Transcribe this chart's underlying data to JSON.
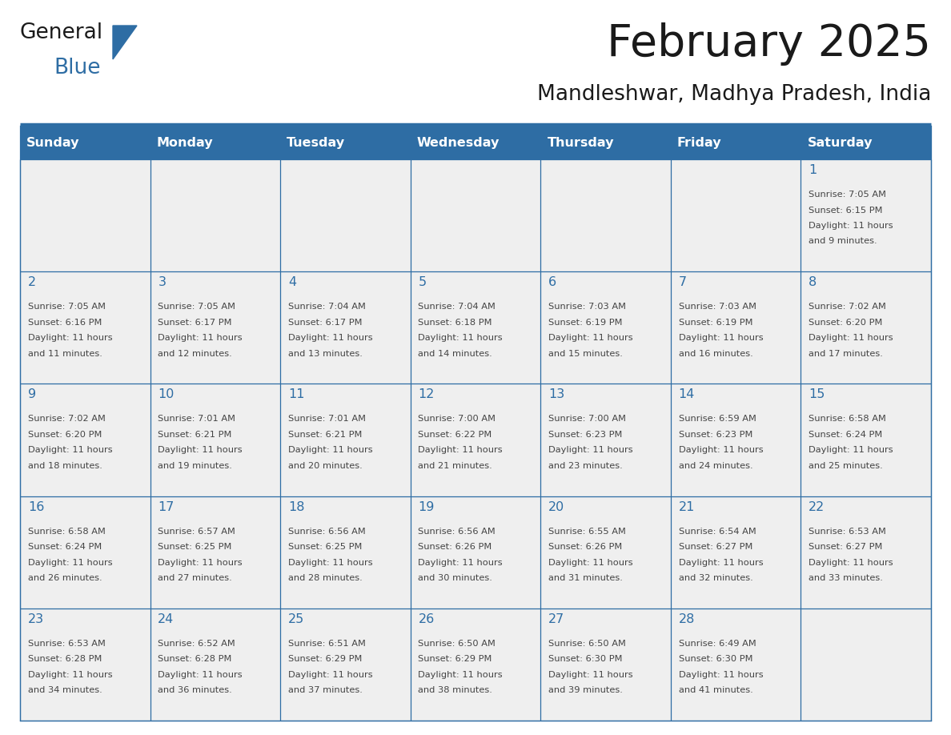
{
  "title": "February 2025",
  "subtitle": "Mandleshwar, Madhya Pradesh, India",
  "header_bg": "#2E6DA4",
  "header_text_color": "#FFFFFF",
  "border_color": "#2E6DA4",
  "day_number_color": "#2E6DA4",
  "text_color": "#444444",
  "cell_bg": "#EFEFEF",
  "days_of_week": [
    "Sunday",
    "Monday",
    "Tuesday",
    "Wednesday",
    "Thursday",
    "Friday",
    "Saturday"
  ],
  "calendar_data": [
    [
      null,
      null,
      null,
      null,
      null,
      null,
      {
        "day": 1,
        "sunrise": "7:05 AM",
        "sunset": "6:15 PM",
        "daylight_h": "11 hours",
        "daylight_m": "and 9 minutes."
      }
    ],
    [
      {
        "day": 2,
        "sunrise": "7:05 AM",
        "sunset": "6:16 PM",
        "daylight_h": "11 hours",
        "daylight_m": "and 11 minutes."
      },
      {
        "day": 3,
        "sunrise": "7:05 AM",
        "sunset": "6:17 PM",
        "daylight_h": "11 hours",
        "daylight_m": "and 12 minutes."
      },
      {
        "day": 4,
        "sunrise": "7:04 AM",
        "sunset": "6:17 PM",
        "daylight_h": "11 hours",
        "daylight_m": "and 13 minutes."
      },
      {
        "day": 5,
        "sunrise": "7:04 AM",
        "sunset": "6:18 PM",
        "daylight_h": "11 hours",
        "daylight_m": "and 14 minutes."
      },
      {
        "day": 6,
        "sunrise": "7:03 AM",
        "sunset": "6:19 PM",
        "daylight_h": "11 hours",
        "daylight_m": "and 15 minutes."
      },
      {
        "day": 7,
        "sunrise": "7:03 AM",
        "sunset": "6:19 PM",
        "daylight_h": "11 hours",
        "daylight_m": "and 16 minutes."
      },
      {
        "day": 8,
        "sunrise": "7:02 AM",
        "sunset": "6:20 PM",
        "daylight_h": "11 hours",
        "daylight_m": "and 17 minutes."
      }
    ],
    [
      {
        "day": 9,
        "sunrise": "7:02 AM",
        "sunset": "6:20 PM",
        "daylight_h": "11 hours",
        "daylight_m": "and 18 minutes."
      },
      {
        "day": 10,
        "sunrise": "7:01 AM",
        "sunset": "6:21 PM",
        "daylight_h": "11 hours",
        "daylight_m": "and 19 minutes."
      },
      {
        "day": 11,
        "sunrise": "7:01 AM",
        "sunset": "6:21 PM",
        "daylight_h": "11 hours",
        "daylight_m": "and 20 minutes."
      },
      {
        "day": 12,
        "sunrise": "7:00 AM",
        "sunset": "6:22 PM",
        "daylight_h": "11 hours",
        "daylight_m": "and 21 minutes."
      },
      {
        "day": 13,
        "sunrise": "7:00 AM",
        "sunset": "6:23 PM",
        "daylight_h": "11 hours",
        "daylight_m": "and 23 minutes."
      },
      {
        "day": 14,
        "sunrise": "6:59 AM",
        "sunset": "6:23 PM",
        "daylight_h": "11 hours",
        "daylight_m": "and 24 minutes."
      },
      {
        "day": 15,
        "sunrise": "6:58 AM",
        "sunset": "6:24 PM",
        "daylight_h": "11 hours",
        "daylight_m": "and 25 minutes."
      }
    ],
    [
      {
        "day": 16,
        "sunrise": "6:58 AM",
        "sunset": "6:24 PM",
        "daylight_h": "11 hours",
        "daylight_m": "and 26 minutes."
      },
      {
        "day": 17,
        "sunrise": "6:57 AM",
        "sunset": "6:25 PM",
        "daylight_h": "11 hours",
        "daylight_m": "and 27 minutes."
      },
      {
        "day": 18,
        "sunrise": "6:56 AM",
        "sunset": "6:25 PM",
        "daylight_h": "11 hours",
        "daylight_m": "and 28 minutes."
      },
      {
        "day": 19,
        "sunrise": "6:56 AM",
        "sunset": "6:26 PM",
        "daylight_h": "11 hours",
        "daylight_m": "and 30 minutes."
      },
      {
        "day": 20,
        "sunrise": "6:55 AM",
        "sunset": "6:26 PM",
        "daylight_h": "11 hours",
        "daylight_m": "and 31 minutes."
      },
      {
        "day": 21,
        "sunrise": "6:54 AM",
        "sunset": "6:27 PM",
        "daylight_h": "11 hours",
        "daylight_m": "and 32 minutes."
      },
      {
        "day": 22,
        "sunrise": "6:53 AM",
        "sunset": "6:27 PM",
        "daylight_h": "11 hours",
        "daylight_m": "and 33 minutes."
      }
    ],
    [
      {
        "day": 23,
        "sunrise": "6:53 AM",
        "sunset": "6:28 PM",
        "daylight_h": "11 hours",
        "daylight_m": "and 34 minutes."
      },
      {
        "day": 24,
        "sunrise": "6:52 AM",
        "sunset": "6:28 PM",
        "daylight_h": "11 hours",
        "daylight_m": "and 36 minutes."
      },
      {
        "day": 25,
        "sunrise": "6:51 AM",
        "sunset": "6:29 PM",
        "daylight_h": "11 hours",
        "daylight_m": "and 37 minutes."
      },
      {
        "day": 26,
        "sunrise": "6:50 AM",
        "sunset": "6:29 PM",
        "daylight_h": "11 hours",
        "daylight_m": "and 38 minutes."
      },
      {
        "day": 27,
        "sunrise": "6:50 AM",
        "sunset": "6:30 PM",
        "daylight_h": "11 hours",
        "daylight_m": "and 39 minutes."
      },
      {
        "day": 28,
        "sunrise": "6:49 AM",
        "sunset": "6:30 PM",
        "daylight_h": "11 hours",
        "daylight_m": "and 41 minutes."
      },
      null
    ]
  ],
  "logo_general_color": "#1a1a1a",
  "logo_blue_color": "#2E6DA4",
  "fig_width": 11.88,
  "fig_height": 9.18,
  "dpi": 100
}
